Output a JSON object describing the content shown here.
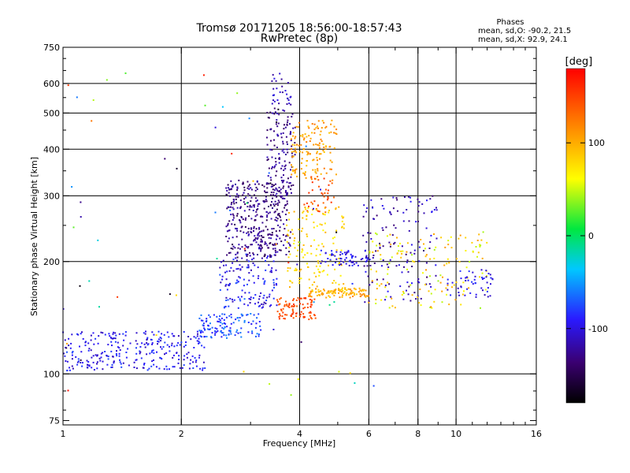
{
  "chart_data": {
    "type": "scatter",
    "title": "Tromsø 20171205 18:56:00-18:57:43",
    "subtitle": "RwPretec (8p)",
    "xlabel": "Frequency [MHz]",
    "ylabel": "Stationary phase Virtual Height [km]",
    "x_scale": "log",
    "y_scale": "log",
    "xlim": [
      1,
      16
    ],
    "ylim": [
      73,
      750
    ],
    "x_ticks": [
      1,
      2,
      4,
      6,
      8,
      10,
      16
    ],
    "y_ticks": [
      75,
      100,
      200,
      300,
      400,
      500,
      600,
      750
    ],
    "x_grid": [
      2,
      4,
      6,
      8,
      10
    ],
    "y_grid": [
      100,
      200,
      300,
      400,
      500,
      600
    ],
    "colorbar": {
      "title": "[deg]",
      "range": [
        -180,
        180
      ],
      "ticks": [
        100,
        0,
        -100
      ]
    },
    "stats": {
      "heading": "Phases",
      "line1": "mean, sd,O: -90.2, 21.5",
      "line2": "mean, sd,X:  92.9, 24.1"
    },
    "clusters": [
      {
        "x": [
          1.0,
          2.3
        ],
        "y": [
          102,
          130
        ],
        "phase": [
          -115,
          -75
        ],
        "n": 280
      },
      {
        "x": [
          2.2,
          3.2
        ],
        "y": [
          125,
          145
        ],
        "phase": [
          -95,
          -55
        ],
        "n": 120
      },
      {
        "x": [
          2.5,
          3.5
        ],
        "y": [
          150,
          210
        ],
        "phase": [
          -120,
          -70
        ],
        "n": 140
      },
      {
        "x": [
          2.6,
          3.8
        ],
        "y": [
          205,
          330
        ],
        "phase": [
          -150,
          -110
        ],
        "n": 380
      },
      {
        "x": [
          3.3,
          3.9
        ],
        "y": [
          300,
          520
        ],
        "phase": [
          -145,
          -110
        ],
        "n": 130
      },
      {
        "x": [
          3.4,
          3.8
        ],
        "y": [
          520,
          640
        ],
        "phase": [
          -125,
          -95
        ],
        "n": 30
      },
      {
        "x": [
          3.5,
          4.4
        ],
        "y": [
          140,
          160
        ],
        "phase": [
          130,
          160
        ],
        "n": 90
      },
      {
        "x": [
          3.8,
          5.0
        ],
        "y": [
          330,
          480
        ],
        "phase": [
          85,
          125
        ],
        "n": 140
      },
      {
        "x": [
          4.1,
          4.9
        ],
        "y": [
          270,
          340
        ],
        "phase": [
          130,
          160
        ],
        "n": 40
      },
      {
        "x": [
          3.7,
          5.2
        ],
        "y": [
          170,
          280
        ],
        "phase": [
          60,
          100
        ],
        "n": 140
      },
      {
        "x": [
          4.2,
          6.0
        ],
        "y": [
          160,
          170
        ],
        "phase": [
          80,
          120
        ],
        "n": 110
      },
      {
        "x": [
          4.5,
          6.0
        ],
        "y": [
          195,
          215
        ],
        "phase": [
          -120,
          -80
        ],
        "n": 60
      },
      {
        "x": [
          5.8,
          9.0
        ],
        "y": [
          155,
          300
        ],
        "phase": [
          -140,
          -90
        ],
        "n": 140
      },
      {
        "x": [
          6.0,
          12.0
        ],
        "y": [
          150,
          240
        ],
        "phase": [
          40,
          110
        ],
        "n": 140
      },
      {
        "x": [
          9.5,
          12.5
        ],
        "y": [
          160,
          190
        ],
        "phase": [
          -115,
          -80
        ],
        "n": 50
      },
      {
        "x": [
          1.0,
          6.5
        ],
        "y": [
          85,
          640
        ],
        "phase": [
          -180,
          180
        ],
        "n": 70
      }
    ]
  }
}
